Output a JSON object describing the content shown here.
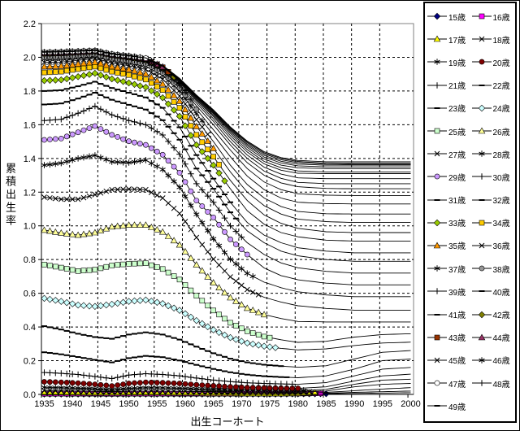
{
  "figure": {
    "title": "",
    "y_axis_title": "累積出生率",
    "x_axis_title": "出生コーホート",
    "legend_unit": "歳"
  },
  "chart_data": {
    "type": "line",
    "title": "",
    "xlabel": "出生コーホート",
    "ylabel": "累積出生率",
    "xlim": [
      1935,
      2000
    ],
    "ylim": [
      0,
      2.2
    ],
    "x_ticks": [
      1935,
      1940,
      1945,
      1950,
      1955,
      1960,
      1965,
      1970,
      1975,
      1980,
      1985,
      1990,
      1995,
      2000
    ],
    "y_ticks": [
      "0.0",
      "0.2",
      "0.4",
      "0.6",
      "0.8",
      "1.0",
      "1.2",
      "1.4",
      "1.6",
      "1.8",
      "2.0",
      "2.2"
    ],
    "grid": "dashed",
    "legend_position": "right",
    "description": "Cumulative cohort fertility of Japan by age (15-49) over birth cohorts 1935-2000; observed series (with markers) end at staggered cohorts, projected continuations converge near 1.38 for recent cohorts.",
    "cohorts": [
      1935,
      1938,
      1941,
      1944,
      1947,
      1950,
      1953,
      1956,
      1959,
      1962,
      1965,
      1968,
      1971,
      1974,
      1977,
      1980,
      1985,
      1990,
      1995,
      2000
    ],
    "series": [
      {
        "age": 15,
        "label": "15歳",
        "marker": "diamond",
        "color": "#000080",
        "marker_end": 1985,
        "values": [
          0.002,
          0.002,
          0.002,
          0.002,
          0.002,
          0.002,
          0.002,
          0.002,
          0.002,
          0.002,
          0.002,
          0.002,
          0.002,
          0.002,
          0.002,
          0.003,
          0.004,
          0.006,
          0.008,
          0.01
        ]
      },
      {
        "age": 16,
        "label": "16歳",
        "marker": "square",
        "color": "#FF00FF",
        "marker_end": 1984,
        "values": [
          0.004,
          0.004,
          0.004,
          0.004,
          0.003,
          0.004,
          0.004,
          0.004,
          0.004,
          0.004,
          0.004,
          0.004,
          0.004,
          0.004,
          0.004,
          0.005,
          0.007,
          0.012,
          0.016,
          0.02
        ]
      },
      {
        "age": 17,
        "label": "17歳",
        "marker": "triangle",
        "color": "#FFFF00",
        "marker_end": 1983,
        "values": [
          0.01,
          0.01,
          0.009,
          0.008,
          0.008,
          0.009,
          0.009,
          0.009,
          0.008,
          0.008,
          0.007,
          0.007,
          0.006,
          0.006,
          0.006,
          0.007,
          0.012,
          0.022,
          0.032,
          0.04
        ]
      },
      {
        "age": 18,
        "label": "18歳",
        "marker": "x",
        "color": "#000000",
        "marker_end": 1982,
        "values": [
          0.022,
          0.021,
          0.02,
          0.018,
          0.016,
          0.019,
          0.02,
          0.019,
          0.018,
          0.017,
          0.015,
          0.014,
          0.013,
          0.013,
          0.012,
          0.013,
          0.02,
          0.045,
          0.06,
          0.065
        ]
      },
      {
        "age": 19,
        "label": "19歳",
        "marker": "asterisk",
        "color": "#000000",
        "marker_end": 1981,
        "values": [
          0.042,
          0.04,
          0.037,
          0.034,
          0.028,
          0.036,
          0.04,
          0.039,
          0.036,
          0.033,
          0.03,
          0.027,
          0.025,
          0.024,
          0.023,
          0.023,
          0.03,
          0.06,
          0.085,
          0.09
        ]
      },
      {
        "age": 20,
        "label": "20歳",
        "marker": "circle",
        "color": "#800000",
        "marker_end": 1980,
        "values": [
          0.075,
          0.072,
          0.067,
          0.06,
          0.05,
          0.065,
          0.072,
          0.069,
          0.065,
          0.057,
          0.051,
          0.045,
          0.041,
          0.039,
          0.037,
          0.036,
          0.045,
          0.08,
          0.11,
          0.12
        ]
      },
      {
        "age": 21,
        "label": "21歳",
        "marker": "plus",
        "color": "#000000",
        "marker_end": 1979,
        "values": [
          0.13,
          0.125,
          0.118,
          0.106,
          0.094,
          0.115,
          0.123,
          0.118,
          0.11,
          0.097,
          0.085,
          0.076,
          0.069,
          0.065,
          0.062,
          0.06,
          0.07,
          0.11,
          0.15,
          0.16
        ]
      },
      {
        "age": 22,
        "label": "22歳",
        "marker": "dash",
        "color": "#000000",
        "marker_end": 1978,
        "values": [
          0.25,
          0.238,
          0.222,
          0.205,
          0.19,
          0.215,
          0.228,
          0.221,
          0.201,
          0.175,
          0.151,
          0.131,
          0.117,
          0.108,
          0.103,
          0.099,
          0.11,
          0.15,
          0.2,
          0.21
        ]
      },
      {
        "age": 23,
        "label": "23歳",
        "marker": "dash",
        "color": "#000000",
        "marker_end": 1977,
        "values": [
          0.405,
          0.385,
          0.36,
          0.34,
          0.33,
          0.355,
          0.368,
          0.355,
          0.325,
          0.283,
          0.244,
          0.212,
          0.19,
          0.176,
          0.168,
          0.161,
          0.17,
          0.21,
          0.25,
          0.26
        ]
      },
      {
        "age": 24,
        "label": "24歳",
        "marker": "diamond",
        "color": "#CCFFFF",
        "marker_end": 1976,
        "values": [
          0.57,
          0.552,
          0.53,
          0.522,
          0.535,
          0.552,
          0.56,
          0.539,
          0.499,
          0.438,
          0.383,
          0.337,
          0.305,
          0.286,
          0.273,
          0.264,
          0.27,
          0.29,
          0.305,
          0.31
        ]
      },
      {
        "age": 25,
        "label": "25歳",
        "marker": "square",
        "color": "#CCFFCC",
        "marker_end": 1975,
        "values": [
          0.77,
          0.752,
          0.732,
          0.74,
          0.765,
          0.775,
          0.778,
          0.744,
          0.681,
          0.585,
          0.498,
          0.425,
          0.375,
          0.343,
          0.324,
          0.309,
          0.315,
          0.34,
          0.355,
          0.36
        ]
      },
      {
        "age": 26,
        "label": "26歳",
        "marker": "triangle",
        "color": "#FFFF99",
        "marker_end": 1974,
        "values": [
          0.975,
          0.958,
          0.945,
          0.96,
          0.995,
          1.005,
          1.005,
          0.964,
          0.887,
          0.769,
          0.663,
          0.574,
          0.512,
          0.474,
          0.45,
          0.433,
          0.43,
          0.43,
          0.43,
          0.43
        ]
      },
      {
        "age": 27,
        "label": "27歳",
        "marker": "x",
        "color": "#000000",
        "marker_end": 1973,
        "values": [
          1.17,
          1.158,
          1.158,
          1.185,
          1.215,
          1.218,
          1.215,
          1.165,
          1.073,
          0.931,
          0.803,
          0.697,
          0.622,
          0.576,
          0.548,
          0.526,
          0.51,
          0.5,
          0.5,
          0.5
        ]
      },
      {
        "age": 28,
        "label": "28歳",
        "marker": "asterisk",
        "color": "#000000",
        "marker_end": 1972,
        "values": [
          1.36,
          1.372,
          1.4,
          1.418,
          1.38,
          1.375,
          1.39,
          1.334,
          1.229,
          1.068,
          0.923,
          0.802,
          0.718,
          0.666,
          0.633,
          0.609,
          0.59,
          0.58,
          0.58,
          0.58
        ]
      },
      {
        "age": 29,
        "label": "29歳",
        "marker": "circle",
        "color": "#CC99FF",
        "marker_end": 1971,
        "values": [
          1.51,
          1.518,
          1.555,
          1.592,
          1.54,
          1.502,
          1.48,
          1.422,
          1.315,
          1.15,
          1.05,
          0.92,
          0.83,
          0.75,
          0.705,
          0.68,
          0.66,
          0.65,
          0.65,
          0.65
        ]
      },
      {
        "age": 30,
        "label": "30歳",
        "marker": "plus",
        "color": "#000000",
        "marker_end": 1970,
        "values": [
          1.625,
          1.632,
          1.668,
          1.71,
          1.658,
          1.625,
          1.6,
          1.539,
          1.425,
          1.25,
          1.14,
          1.0,
          0.9,
          0.83,
          0.78,
          0.751,
          0.73,
          0.72,
          0.72,
          0.72
        ]
      },
      {
        "age": 31,
        "label": "31歳",
        "marker": "dash",
        "color": "#000000",
        "marker_end": 1969,
        "values": [
          1.72,
          1.726,
          1.755,
          1.79,
          1.748,
          1.718,
          1.69,
          1.627,
          1.511,
          1.34,
          1.22,
          1.08,
          0.97,
          0.9,
          0.85,
          0.822,
          0.8,
          0.79,
          0.79,
          0.79
        ]
      },
      {
        "age": 32,
        "label": "32歳",
        "marker": "dash",
        "color": "#000000",
        "marker_end": 1968,
        "values": [
          1.8,
          1.805,
          1.828,
          1.855,
          1.818,
          1.79,
          1.762,
          1.7,
          1.585,
          1.42,
          1.28,
          1.14,
          1.02,
          0.945,
          0.9,
          0.87,
          0.85,
          0.84,
          0.84,
          0.84
        ]
      },
      {
        "age": 33,
        "label": "33歳",
        "marker": "diamond",
        "color": "#99CC00",
        "marker_end": 1967,
        "values": [
          1.862,
          1.866,
          1.885,
          1.905,
          1.872,
          1.848,
          1.822,
          1.76,
          1.65,
          1.48,
          1.36,
          1.22,
          1.09,
          1.01,
          0.96,
          0.935,
          0.915,
          0.91,
          0.91,
          0.91
        ]
      },
      {
        "age": 34,
        "label": "34歳",
        "marker": "square",
        "color": "#FFCC00",
        "marker_end": 1966,
        "values": [
          1.91,
          1.915,
          1.93,
          1.945,
          1.915,
          1.895,
          1.868,
          1.806,
          1.7,
          1.54,
          1.41,
          1.27,
          1.15,
          1.065,
          1.015,
          0.985,
          0.965,
          0.96,
          0.96,
          0.96
        ]
      },
      {
        "age": 35,
        "label": "35歳",
        "marker": "triangle",
        "color": "#FF9900",
        "marker_end": 1965,
        "values": [
          1.945,
          1.948,
          1.96,
          1.972,
          1.945,
          1.928,
          1.902,
          1.842,
          1.74,
          1.59,
          1.46,
          1.32,
          1.2,
          1.12,
          1.07,
          1.04,
          1.025,
          1.02,
          1.02,
          1.02
        ]
      },
      {
        "age": 36,
        "label": "36歳",
        "marker": "x",
        "color": "#000000",
        "marker_end": 1964,
        "values": [
          1.97,
          1.972,
          1.982,
          1.992,
          1.966,
          1.95,
          1.928,
          1.87,
          1.77,
          1.63,
          1.5,
          1.36,
          1.245,
          1.165,
          1.115,
          1.085,
          1.072,
          1.07,
          1.07,
          1.07
        ]
      },
      {
        "age": 37,
        "label": "37歳",
        "marker": "asterisk",
        "color": "#000000",
        "marker_end": 1963,
        "values": [
          1.988,
          1.99,
          1.998,
          2.006,
          1.982,
          1.966,
          1.946,
          1.892,
          1.8,
          1.665,
          1.54,
          1.41,
          1.295,
          1.215,
          1.165,
          1.14,
          1.132,
          1.13,
          1.13,
          1.13
        ]
      },
      {
        "age": 38,
        "label": "38歳",
        "marker": "circle",
        "color": "#969696",
        "marker_end": 1962,
        "values": [
          2.0,
          2.002,
          2.009,
          2.016,
          1.992,
          1.978,
          1.96,
          1.908,
          1.818,
          1.692,
          1.57,
          1.45,
          1.34,
          1.26,
          1.215,
          1.19,
          1.182,
          1.18,
          1.18,
          1.18
        ]
      },
      {
        "age": 39,
        "label": "39歳",
        "marker": "plus",
        "color": "#000000",
        "marker_end": 1961,
        "values": [
          2.008,
          2.01,
          2.016,
          2.022,
          2.0,
          1.986,
          1.97,
          1.92,
          1.832,
          1.712,
          1.6,
          1.48,
          1.375,
          1.3,
          1.255,
          1.232,
          1.222,
          1.22,
          1.22,
          1.22
        ]
      },
      {
        "age": 40,
        "label": "40歳",
        "marker": "dash",
        "color": "#000000",
        "marker_end": 1960,
        "values": [
          2.014,
          2.016,
          2.021,
          2.027,
          2.005,
          1.992,
          1.977,
          1.928,
          1.842,
          1.728,
          1.62,
          1.5,
          1.4,
          1.325,
          1.282,
          1.258,
          1.25,
          1.25,
          1.25,
          1.25
        ]
      },
      {
        "age": 41,
        "label": "41歳",
        "marker": "dash",
        "color": "#000000",
        "marker_end": 1959,
        "values": [
          2.018,
          2.02,
          2.025,
          2.03,
          2.009,
          1.997,
          1.982,
          1.934,
          1.85,
          1.74,
          1.635,
          1.52,
          1.42,
          1.348,
          1.307,
          1.285,
          1.28,
          1.28,
          1.28,
          1.28
        ]
      },
      {
        "age": 42,
        "label": "42歳",
        "marker": "diamond",
        "color": "#808000",
        "marker_end": 1958,
        "values": [
          2.021,
          2.023,
          2.028,
          2.033,
          2.012,
          2.0,
          1.986,
          1.938,
          1.856,
          1.748,
          1.648,
          1.535,
          1.438,
          1.368,
          1.33,
          1.312,
          1.31,
          1.31,
          1.31,
          1.31
        ]
      },
      {
        "age": 43,
        "label": "43歳",
        "marker": "square",
        "color": "#993300",
        "marker_end": 1957,
        "values": [
          2.024,
          2.026,
          2.03,
          2.035,
          2.014,
          2.003,
          1.989,
          1.941,
          1.86,
          1.754,
          1.656,
          1.548,
          1.452,
          1.382,
          1.345,
          1.326,
          1.32,
          1.32,
          1.32,
          1.32
        ]
      },
      {
        "age": 44,
        "label": "44歳",
        "marker": "triangle",
        "color": "#993366",
        "marker_end": 1956,
        "values": [
          2.026,
          2.028,
          2.032,
          2.037,
          2.016,
          2.005,
          1.991,
          1.944,
          1.864,
          1.76,
          1.664,
          1.558,
          1.465,
          1.396,
          1.36,
          1.344,
          1.34,
          1.34,
          1.34,
          1.34
        ]
      },
      {
        "age": 45,
        "label": "45歳",
        "marker": "x",
        "color": "#000000",
        "marker_end": 1955,
        "values": [
          2.028,
          2.03,
          2.034,
          2.038,
          2.017,
          2.006,
          1.993,
          1.946,
          1.867,
          1.764,
          1.67,
          1.566,
          1.476,
          1.408,
          1.373,
          1.356,
          1.35,
          1.35,
          1.35,
          1.35
        ]
      },
      {
        "age": 46,
        "label": "46歳",
        "marker": "asterisk",
        "color": "#000000",
        "marker_end": 1954,
        "values": [
          2.029,
          2.031,
          2.035,
          2.039,
          2.018,
          2.007,
          1.994,
          1.948,
          1.87,
          1.768,
          1.675,
          1.572,
          1.484,
          1.418,
          1.383,
          1.366,
          1.36,
          1.36,
          1.36,
          1.36
        ]
      },
      {
        "age": 47,
        "label": "47歳",
        "marker": "circle",
        "color": "#FFFFFF",
        "marker_end": 1953,
        "values": [
          2.03,
          2.032,
          2.036,
          2.04,
          2.019,
          2.008,
          1.995,
          1.95,
          1.872,
          1.771,
          1.68,
          1.578,
          1.492,
          1.427,
          1.392,
          1.375,
          1.366,
          1.365,
          1.365,
          1.365
        ]
      },
      {
        "age": 48,
        "label": "48歳",
        "marker": "plus",
        "color": "#000000",
        "marker_end": 1952,
        "values": [
          2.031,
          2.033,
          2.037,
          2.041,
          2.02,
          2.009,
          1.996,
          1.951,
          1.874,
          1.774,
          1.684,
          1.583,
          1.498,
          1.434,
          1.399,
          1.382,
          1.372,
          1.37,
          1.37,
          1.37
        ]
      },
      {
        "age": 49,
        "label": "49歳",
        "marker": "dash",
        "color": "#000000",
        "marker_end": 1951,
        "values": [
          2.032,
          2.034,
          2.038,
          2.042,
          2.021,
          2.01,
          1.997,
          1.952,
          1.875,
          1.776,
          1.688,
          1.587,
          1.503,
          1.44,
          1.405,
          1.388,
          1.38,
          1.38,
          1.38,
          1.38
        ]
      }
    ]
  }
}
